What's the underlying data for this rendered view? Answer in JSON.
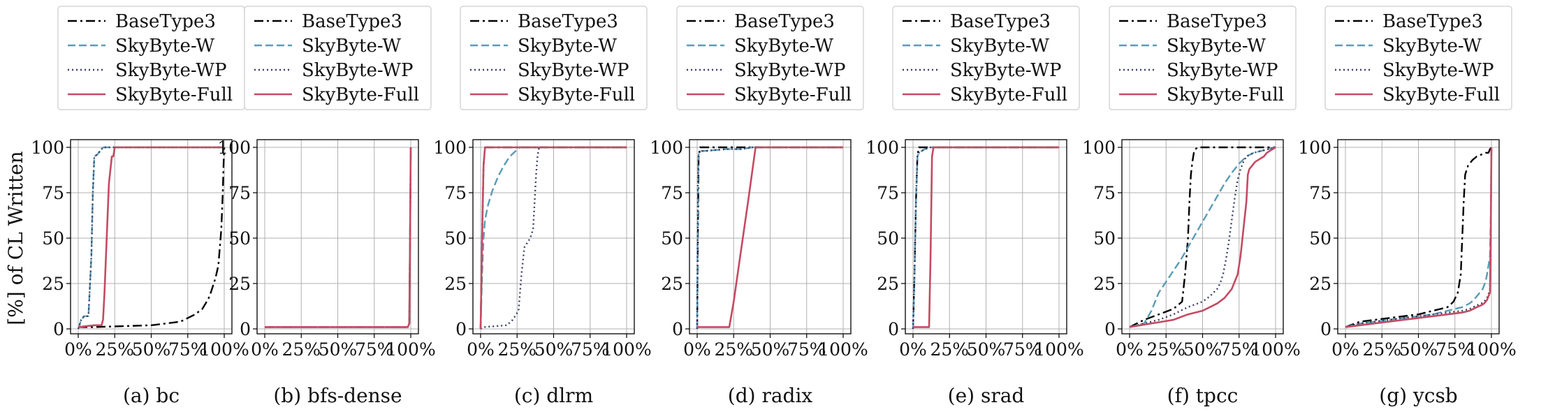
{
  "shared": {
    "ylabel": "[%] of CL Written",
    "ytick_labels": [
      "0",
      "25",
      "50",
      "75",
      "100"
    ],
    "xtick_labels": [
      "0%",
      "25%",
      "50%",
      "75%",
      "100%"
    ],
    "xlim": [
      0,
      100
    ],
    "ylim": [
      0,
      100
    ],
    "grid": true,
    "legend_position": "top",
    "series_styles": [
      {
        "name": "BaseType3",
        "color": "#000000",
        "dash": "dashdot"
      },
      {
        "name": "SkyByte-W",
        "color": "#5b9bb5",
        "dash": "dashed"
      },
      {
        "name": "SkyByte-WP",
        "color": "#3a3f63",
        "dash": "dotted"
      },
      {
        "name": "SkyByte-Full",
        "color": "#c44a63",
        "dash": "solid"
      }
    ]
  },
  "chart_data": [
    {
      "type": "line",
      "caption": "(a) bc",
      "series": [
        {
          "name": "BaseType3",
          "x": [
            0,
            5,
            10,
            50,
            60,
            70,
            75,
            80,
            85,
            88,
            90,
            92,
            94,
            96,
            97,
            98,
            98.5,
            99,
            99.5,
            100
          ],
          "y": [
            1,
            1,
            1,
            2,
            3,
            4,
            6,
            8,
            11,
            15,
            18,
            23,
            28,
            35,
            45,
            55,
            65,
            75,
            90,
            100
          ]
        },
        {
          "name": "SkyByte-W",
          "x": [
            0,
            2,
            4,
            7,
            9,
            10,
            11,
            13,
            15,
            17,
            100
          ],
          "y": [
            0,
            5,
            7,
            7,
            40,
            75,
            95,
            96,
            98,
            100,
            100
          ]
        },
        {
          "name": "SkyByte-WP",
          "x": [
            0,
            2,
            4,
            7,
            9,
            10,
            11,
            13,
            15,
            17,
            100
          ],
          "y": [
            0,
            5,
            7,
            7,
            40,
            75,
            95,
            96,
            98,
            100,
            100
          ]
        },
        {
          "name": "SkyByte-Full",
          "x": [
            0,
            11,
            16,
            17,
            18,
            19,
            20,
            21,
            23,
            24,
            25,
            100
          ],
          "y": [
            1,
            2,
            2,
            5,
            20,
            40,
            60,
            80,
            95,
            95,
            100,
            100
          ]
        }
      ]
    },
    {
      "type": "line",
      "caption": "(b) bfs-dense",
      "series": [
        {
          "name": "BaseType3",
          "x": [
            0,
            98,
            99,
            99.5,
            100
          ],
          "y": [
            1,
            1,
            3,
            50,
            100
          ]
        },
        {
          "name": "SkyByte-W",
          "x": [
            0,
            98,
            99,
            99.5,
            100
          ],
          "y": [
            1,
            1,
            3,
            50,
            100
          ]
        },
        {
          "name": "SkyByte-WP",
          "x": [
            0,
            98,
            99,
            99.5,
            100
          ],
          "y": [
            1,
            1,
            3,
            50,
            100
          ]
        },
        {
          "name": "SkyByte-Full",
          "x": [
            0,
            98,
            99,
            99.5,
            100
          ],
          "y": [
            1,
            1,
            3,
            50,
            100
          ]
        }
      ]
    },
    {
      "type": "line",
      "caption": "(c) dlrm",
      "series": [
        {
          "name": "BaseType3",
          "x": [
            0,
            1,
            2,
            3,
            100
          ],
          "y": [
            0,
            50,
            90,
            100,
            100
          ]
        },
        {
          "name": "SkyByte-W",
          "x": [
            0,
            1,
            2,
            3,
            5,
            8,
            12,
            16,
            20,
            24,
            27,
            100
          ],
          "y": [
            0,
            30,
            50,
            60,
            68,
            76,
            84,
            90,
            95,
            98,
            100,
            100
          ]
        },
        {
          "name": "SkyByte-WP",
          "x": [
            0,
            2,
            18,
            22,
            26,
            28,
            30,
            34,
            36,
            37,
            38,
            39,
            40,
            100
          ],
          "y": [
            0,
            1,
            2,
            5,
            10,
            30,
            45,
            50,
            55,
            70,
            85,
            95,
            100,
            100
          ]
        },
        {
          "name": "SkyByte-Full",
          "x": [
            0,
            1,
            2,
            3,
            100
          ],
          "y": [
            0,
            50,
            90,
            100,
            100
          ]
        }
      ]
    },
    {
      "type": "line",
      "caption": "(d) radix",
      "series": [
        {
          "name": "BaseType3",
          "x": [
            0,
            0.5,
            1,
            2,
            100
          ],
          "y": [
            0,
            50,
            95,
            100,
            100
          ]
        },
        {
          "name": "SkyByte-W",
          "x": [
            0,
            0.5,
            1,
            2,
            5,
            20,
            30,
            38,
            100
          ],
          "y": [
            0,
            80,
            96,
            98,
            98,
            99,
            99,
            100,
            100
          ]
        },
        {
          "name": "SkyByte-WP",
          "x": [
            0,
            0.5,
            1,
            2,
            5,
            20,
            30,
            38,
            100
          ],
          "y": [
            0,
            80,
            96,
            98,
            98,
            99,
            99,
            100,
            100
          ]
        },
        {
          "name": "SkyByte-Full",
          "x": [
            0,
            22,
            25,
            30,
            35,
            40,
            100
          ],
          "y": [
            1,
            1,
            15,
            43,
            71,
            100,
            100
          ]
        }
      ]
    },
    {
      "type": "line",
      "caption": "(e) srad",
      "series": [
        {
          "name": "BaseType3",
          "x": [
            0,
            1,
            2,
            3,
            4,
            100
          ],
          "y": [
            0,
            30,
            70,
            95,
            100,
            100
          ]
        },
        {
          "name": "SkyByte-W",
          "x": [
            0,
            1,
            2,
            3,
            4,
            6,
            8,
            10,
            12,
            14,
            100
          ],
          "y": [
            0,
            30,
            70,
            95,
            97,
            98,
            99,
            99.5,
            100,
            100,
            100
          ]
        },
        {
          "name": "SkyByte-WP",
          "x": [
            0,
            1,
            2,
            3,
            4,
            6,
            8,
            10,
            12,
            14,
            100
          ],
          "y": [
            0,
            30,
            70,
            95,
            97,
            98,
            99,
            99.5,
            100,
            100,
            100
          ]
        },
        {
          "name": "SkyByte-Full",
          "x": [
            0,
            11,
            12,
            13,
            14,
            100
          ],
          "y": [
            1,
            1,
            40,
            95,
            100,
            100
          ]
        }
      ]
    },
    {
      "type": "line",
      "caption": "(f) tpcc",
      "series": [
        {
          "name": "BaseType3",
          "x": [
            0,
            10,
            20,
            30,
            36,
            38,
            40,
            41,
            42,
            43,
            44,
            45,
            47,
            50,
            60,
            80,
            90,
            100
          ],
          "y": [
            1,
            5,
            8,
            11,
            15,
            30,
            50,
            70,
            85,
            92,
            97,
            99,
            100,
            100,
            100,
            100,
            100,
            100
          ]
        },
        {
          "name": "SkyByte-W",
          "x": [
            0,
            10,
            15,
            20,
            25,
            30,
            35,
            40,
            45,
            50,
            55,
            60,
            65,
            70,
            75,
            80,
            85,
            90,
            95,
            100
          ],
          "y": [
            1,
            3,
            10,
            20,
            26,
            32,
            38,
            45,
            52,
            59,
            66,
            73,
            80,
            86,
            91,
            95,
            97,
            98,
            99,
            100
          ]
        },
        {
          "name": "SkyByte-WP",
          "x": [
            0,
            20,
            30,
            40,
            50,
            55,
            60,
            62,
            64,
            66,
            68,
            70,
            72,
            74,
            76,
            78,
            80,
            85,
            90,
            95,
            100
          ],
          "y": [
            1,
            5,
            8,
            12,
            15,
            18,
            22,
            25,
            30,
            38,
            48,
            60,
            72,
            82,
            88,
            92,
            95,
            97,
            98,
            99,
            100
          ]
        },
        {
          "name": "SkyByte-Full",
          "x": [
            0,
            30,
            40,
            50,
            55,
            60,
            65,
            70,
            74,
            76,
            78,
            80,
            81,
            82,
            84,
            86,
            88,
            90,
            92,
            94,
            96,
            98,
            100
          ],
          "y": [
            1,
            5,
            8,
            10,
            12,
            14,
            17,
            22,
            30,
            40,
            55,
            70,
            85,
            88,
            90,
            92,
            93,
            94,
            95,
            97,
            98,
            99,
            100
          ]
        }
      ]
    },
    {
      "type": "line",
      "caption": "(g) ycsb",
      "series": [
        {
          "name": "BaseType3",
          "x": [
            0,
            10,
            20,
            30,
            40,
            50,
            60,
            70,
            74,
            77,
            79,
            80,
            81,
            82,
            84,
            87,
            90,
            93,
            96,
            98,
            99,
            100
          ],
          "y": [
            1,
            4,
            5,
            6,
            7,
            8,
            10,
            12,
            15,
            20,
            30,
            50,
            70,
            85,
            90,
            93,
            95,
            96,
            97,
            97,
            99,
            100
          ]
        },
        {
          "name": "SkyByte-W",
          "x": [
            0,
            10,
            20,
            30,
            40,
            50,
            60,
            70,
            75,
            80,
            85,
            88,
            90,
            92,
            94,
            96,
            97,
            98,
            99,
            99.5,
            100
          ],
          "y": [
            1,
            3,
            4,
            5,
            6,
            7,
            8,
            10,
            11,
            12,
            14,
            16,
            18,
            20,
            22,
            26,
            30,
            35,
            40,
            60,
            100
          ]
        },
        {
          "name": "SkyByte-WP",
          "x": [
            0,
            10,
            20,
            30,
            40,
            50,
            60,
            70,
            80,
            85,
            90,
            93,
            95,
            97,
            98,
            99,
            99.5,
            100
          ],
          "y": [
            1,
            3,
            4,
            5,
            6,
            7,
            8,
            9,
            10,
            11,
            13,
            14,
            15,
            17,
            19,
            22,
            50,
            100
          ]
        },
        {
          "name": "SkyByte-Full",
          "x": [
            0,
            10,
            20,
            30,
            40,
            50,
            60,
            70,
            80,
            85,
            90,
            93,
            95,
            97,
            98,
            99,
            99.5,
            100
          ],
          "y": [
            1,
            2,
            3,
            4,
            5,
            6,
            7,
            8,
            9,
            10,
            12,
            13,
            14,
            16,
            18,
            20,
            50,
            100
          ]
        }
      ]
    }
  ]
}
